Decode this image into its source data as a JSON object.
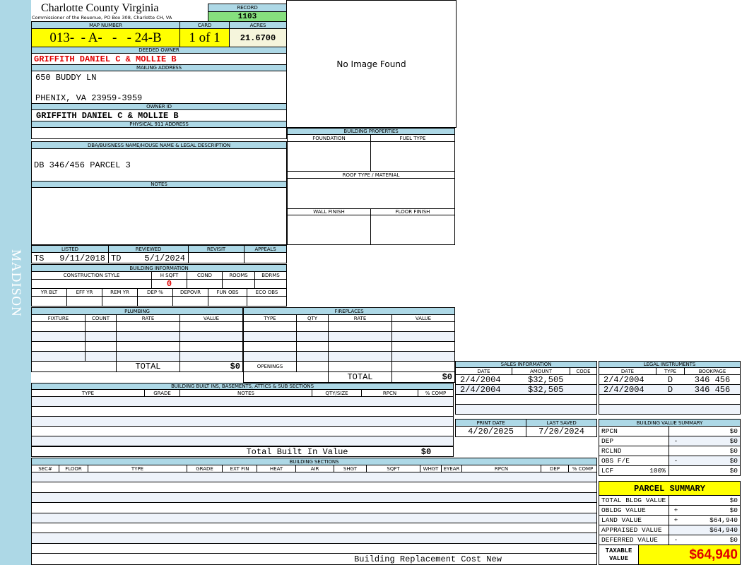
{
  "sidebar_label": "MADISON",
  "header": {
    "title": "Charlotte County Virginia",
    "subtitle": "Commissioner of the Reuenue, PO Box 308, Charlotte CH, VA",
    "record_label": "RECORD",
    "record": "1103"
  },
  "parcel": {
    "map_number_label": "MAP NUMBER",
    "map_number": "013-  - A-   -   - 24-B",
    "card_label": "CARD",
    "card": "1 of 1",
    "acres_label": "ACRES",
    "acres": "21.6700"
  },
  "owner": {
    "deeded_label": "DEEDED OWNER",
    "deeded": "GRIFFITH DANIEL C & MOLLIE B",
    "mailing_label": "MAILING ADDRESS",
    "mailing_line1": "650 BUDDY LN",
    "mailing_line2": "PHENIX, VA 23959-3959",
    "owner_id_label": "OWNER ID",
    "owner_id": "GRIFFITH DANIEL C & MOLLIE B",
    "physical_label": "PHYSICAL 911 ADDRESS",
    "physical": ""
  },
  "legal": {
    "label": "DBA/BUISNESS NAME/HOUSE NAME & LEGAL DESCRIPTION",
    "text": "DB 346/456 PARCEL 3"
  },
  "notes": {
    "label": "NOTES",
    "text": ""
  },
  "image": {
    "text": "No Image Found"
  },
  "building_properties": {
    "title": "BUILDING PROPERTIES",
    "foundation": "FOUNDATION",
    "fuel_type": "FUEL TYPE",
    "roof": "ROOF TYPE / MATERIAL",
    "wall": "WALL FINISH",
    "floor": "FLOOR FINISH"
  },
  "review": {
    "headers": [
      "LISTED",
      "REVIEWED",
      "REVISIT",
      "APPEALS"
    ],
    "listed_by": "TS",
    "listed_date": "9/11/2018",
    "reviewed_by": "TD",
    "reviewed_date": "5/1/2024"
  },
  "building_info": {
    "title": "BUILDING INFORMATION",
    "headers1": [
      "CONSTRUCTION STYLE",
      "H SQFT",
      "COND",
      "ROOMS",
      "BDRMS"
    ],
    "hsqft": "0",
    "headers2": [
      "YR BLT",
      "EFF YR",
      "REM YR",
      "DEP %",
      "DEPOVR",
      "FUN OBS",
      "ECO OBS"
    ]
  },
  "plumbing": {
    "title": "PLUMBING",
    "headers": [
      "FIXTURE",
      "COUNT",
      "RATE",
      "VALUE"
    ],
    "total_label": "TOTAL",
    "total": "$0"
  },
  "fireplaces": {
    "title": "FIREPLACES",
    "headers": [
      "TYPE",
      "QTY",
      "RATE",
      "VALUE"
    ],
    "openings_label": "OPENINGS",
    "total_label": "TOTAL",
    "total": "$0"
  },
  "built_ins": {
    "title": "BUILDING BUILT INS, BASEMENTS, ATTICS & SUB SECTIONS",
    "headers": [
      "TYPE",
      "GRADE",
      "NOTES",
      "QTY/SIZE",
      "RPCN",
      "% COMP"
    ],
    "total_label": "Total Built In Value",
    "total": "$0"
  },
  "sections": {
    "title": "BUILDING SECTIONS",
    "headers": [
      "SEC#",
      "FLOOR",
      "TYPE",
      "GRADE",
      "EXT FIN",
      "HEAT",
      "AIR",
      "SHGT",
      "SQFT",
      "WHGT",
      "EYEAR",
      "RPCN",
      "DEP",
      "% COMP"
    ],
    "total_label": "Building Replacement Cost New"
  },
  "sales": {
    "title": "SALES INFORMATION",
    "headers": [
      "DATE",
      "AMOUNT",
      "CODE"
    ],
    "rows": [
      [
        "2/4/2004",
        "$32,505",
        ""
      ],
      [
        "2/4/2004",
        "$32,505",
        ""
      ]
    ]
  },
  "legal_instruments": {
    "title": "LEGAL INSTRUMENTS",
    "headers": [
      "DATE",
      "TYPE",
      "BOOKPAGE"
    ],
    "rows": [
      [
        "2/4/2004",
        "D",
        "346 456"
      ],
      [
        "2/4/2004",
        "D",
        "346 456"
      ]
    ]
  },
  "dates": {
    "print_label": "PRINT DATE",
    "print": "4/20/2025",
    "saved_label": "LAST SAVED",
    "saved": "7/20/2024"
  },
  "value_summary": {
    "title": "BUILDING VALUE SUMMARY",
    "lcf_pct": "100%",
    "rows": [
      {
        "label": "RPCN",
        "sign": "",
        "value": "$0"
      },
      {
        "label": "DEP",
        "sign": "-",
        "value": "$0"
      },
      {
        "label": "RCLND",
        "sign": "",
        "value": "$0"
      },
      {
        "label": "OBS F/E",
        "sign": "-",
        "value": "$0"
      },
      {
        "label": "LCF",
        "sign": "",
        "value": "$0"
      }
    ]
  },
  "parcel_summary": {
    "title": "PARCEL SUMMARY",
    "rows": [
      {
        "label": "TOTAL BLDG VALUE",
        "sign": "",
        "value": "$0"
      },
      {
        "label": "OBLDG VALUE",
        "sign": "+",
        "value": "$0"
      },
      {
        "label": "LAND VALUE",
        "sign": "+",
        "value": "$64,940"
      },
      {
        "label": "APPRAISED VALUE",
        "sign": "",
        "value": "$64,940"
      },
      {
        "label": "DEFERRED VALUE",
        "sign": "-",
        "value": "$0"
      }
    ],
    "taxable_label": "TAXABLE VALUE",
    "taxable": "$64,940"
  },
  "colors": {
    "header_blue": "#add8e6",
    "highlight_yellow": "#ffff00",
    "record_green": "#86e07e",
    "value_red": "#e00000"
  }
}
